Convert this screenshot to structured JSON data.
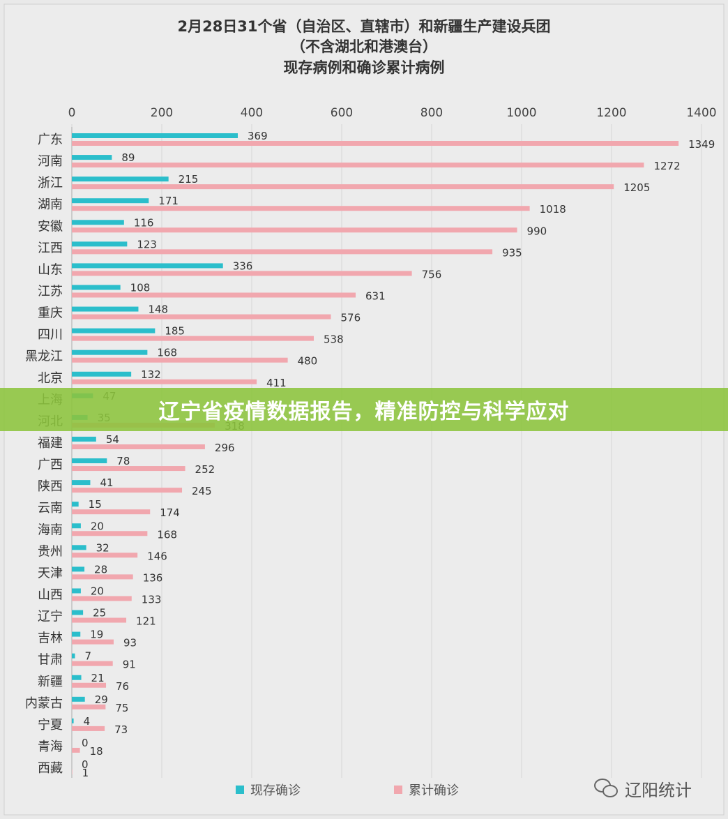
{
  "chart_data": {
    "type": "bar",
    "title_lines": [
      "2月28日31个省（自治区、直辖市）和新疆生产建设兵团",
      "（不含湖北和港澳台）",
      "现存病例和确诊累计病例"
    ],
    "categories": [
      "广东",
      "河南",
      "浙江",
      "湖南",
      "安徽",
      "江西",
      "山东",
      "江苏",
      "重庆",
      "四川",
      "黑龙江",
      "北京",
      "上海",
      "河北",
      "福建",
      "广西",
      "陕西",
      "云南",
      "海南",
      "贵州",
      "天津",
      "山西",
      "辽宁",
      "吉林",
      "甘肃",
      "新疆",
      "内蒙古",
      "宁夏",
      "青海",
      "西藏"
    ],
    "series": [
      {
        "name": "现存确诊",
        "color": "#2bbecb",
        "values": [
          369,
          89,
          215,
          171,
          116,
          123,
          336,
          108,
          148,
          185,
          168,
          132,
          47,
          35,
          54,
          78,
          41,
          15,
          20,
          32,
          28,
          20,
          25,
          19,
          7,
          21,
          29,
          4,
          0,
          0
        ]
      },
      {
        "name": "累计确诊",
        "color": "#f1a7ae",
        "values": [
          1349,
          1272,
          1205,
          1018,
          990,
          935,
          756,
          631,
          576,
          538,
          480,
          411,
          null,
          318,
          296,
          252,
          245,
          174,
          168,
          146,
          136,
          133,
          121,
          93,
          91,
          76,
          75,
          73,
          18,
          1
        ]
      }
    ],
    "xlim": [
      0,
      1400
    ],
    "xticks": [
      "0",
      "200",
      "400",
      "600",
      "800",
      "1000",
      "1200",
      "1400"
    ],
    "orientation": "horizontal",
    "legend_position": "bottom",
    "grid": true
  },
  "banner": {
    "text": "辽宁省疫情数据报告，精准防控与科学应对"
  },
  "watermark": {
    "text": "辽阳统计"
  }
}
